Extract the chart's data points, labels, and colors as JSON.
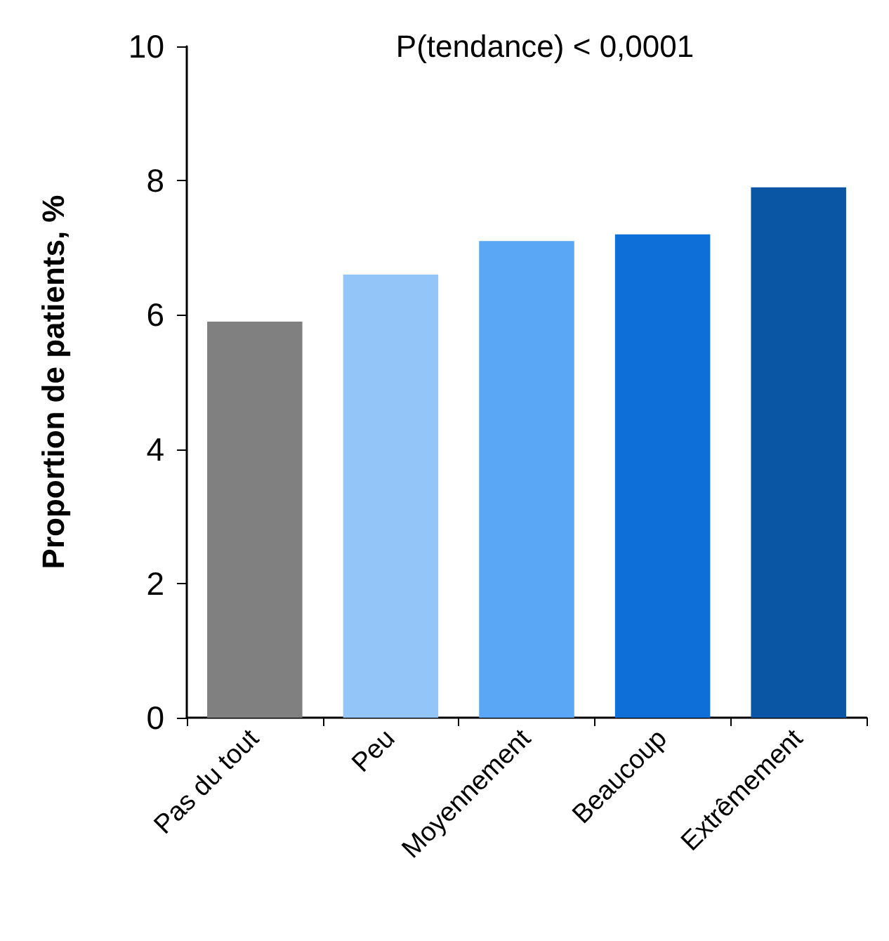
{
  "chart_data": {
    "type": "bar",
    "ylabel": "Proportion de patients, %",
    "annotations": [
      "P(tendance) < 0,0001"
    ],
    "categories": [
      "Pas du tout",
      "Peu",
      "Moyennement",
      "Beaucoup",
      "Extrêmement"
    ],
    "values": [
      5.9,
      6.6,
      7.1,
      7.2,
      7.9
    ],
    "colors": [
      "#808080",
      "#93c5f8",
      "#5aa8f5",
      "#0e6fd8",
      "#0a56a5"
    ],
    "ylim": [
      0,
      10
    ],
    "yticks": [
      0,
      2,
      4,
      6,
      8,
      10
    ]
  }
}
